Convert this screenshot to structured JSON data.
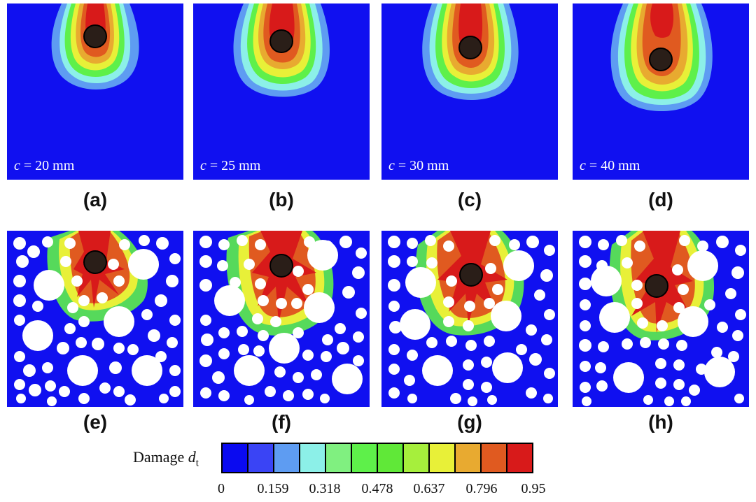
{
  "panels_top": [
    {
      "id": "a",
      "label": "(a)",
      "c_symbol": "c",
      "c_value": " = 20 mm"
    },
    {
      "id": "b",
      "label": "(b)",
      "c_symbol": "c",
      "c_value": " = 25 mm"
    },
    {
      "id": "c",
      "label": "(c)",
      "c_symbol": "c",
      "c_value": " = 30 mm"
    },
    {
      "id": "d",
      "label": "(d)",
      "c_symbol": "c",
      "c_value": " = 40 mm"
    }
  ],
  "panels_bottom": [
    {
      "id": "e",
      "label": "(e)"
    },
    {
      "id": "f",
      "label": "(f)"
    },
    {
      "id": "g",
      "label": "(g)"
    },
    {
      "id": "h",
      "label": "(h)"
    }
  ],
  "colorbar": {
    "title_text": "Damage ",
    "title_symbol": "d",
    "title_sub": "t",
    "colors": [
      "#0a0af0",
      "#3a44f5",
      "#5e9cf2",
      "#8cf0e8",
      "#80f080",
      "#5ef04a",
      "#60e838",
      "#a6ef3c",
      "#e8f038",
      "#e8aa30",
      "#e05a20",
      "#d81a1a"
    ],
    "ticks": [
      "0",
      "0.159",
      "0.318",
      "0.478",
      "0.637",
      "0.796",
      "0.95"
    ]
  },
  "colors": {
    "matrix": "#1010f0",
    "pore": "#ffffff",
    "inclusion": "#2a1e18"
  }
}
